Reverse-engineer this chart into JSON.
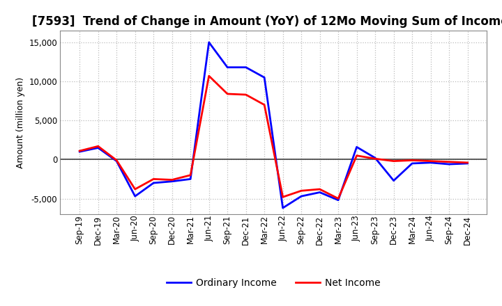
{
  "title": "[7593]  Trend of Change in Amount (YoY) of 12Mo Moving Sum of Incomes",
  "ylabel": "Amount (million yen)",
  "x_labels": [
    "Sep-19",
    "Dec-19",
    "Mar-20",
    "Jun-20",
    "Sep-20",
    "Dec-20",
    "Mar-21",
    "Jun-21",
    "Sep-21",
    "Dec-21",
    "Mar-22",
    "Jun-22",
    "Sep-22",
    "Dec-22",
    "Mar-23",
    "Jun-23",
    "Sep-23",
    "Dec-23",
    "Mar-24",
    "Jun-24",
    "Sep-24",
    "Dec-24"
  ],
  "ordinary_income": [
    1000,
    1500,
    -200,
    -4700,
    -3000,
    -2800,
    -2500,
    15000,
    11800,
    11800,
    10500,
    -6200,
    -4700,
    -4200,
    -5200,
    1600,
    200,
    -2700,
    -500,
    -400,
    -600,
    -500
  ],
  "net_income": [
    1100,
    1700,
    -100,
    -3800,
    -2500,
    -2600,
    -2000,
    10700,
    8400,
    8300,
    7000,
    -4800,
    -4000,
    -3800,
    -5000,
    500,
    100,
    -200,
    -100,
    -200,
    -300,
    -400
  ],
  "ordinary_income_color": "#0000FF",
  "net_income_color": "#FF0000",
  "background_color": "#FFFFFF",
  "grid_color": "#BBBBBB",
  "ylim": [
    -7000,
    16500
  ],
  "yticks": [
    -5000,
    0,
    5000,
    10000,
    15000
  ],
  "line_width": 2.0,
  "title_fontsize": 12,
  "axis_fontsize": 9,
  "tick_fontsize": 8.5,
  "legend_fontsize": 10
}
